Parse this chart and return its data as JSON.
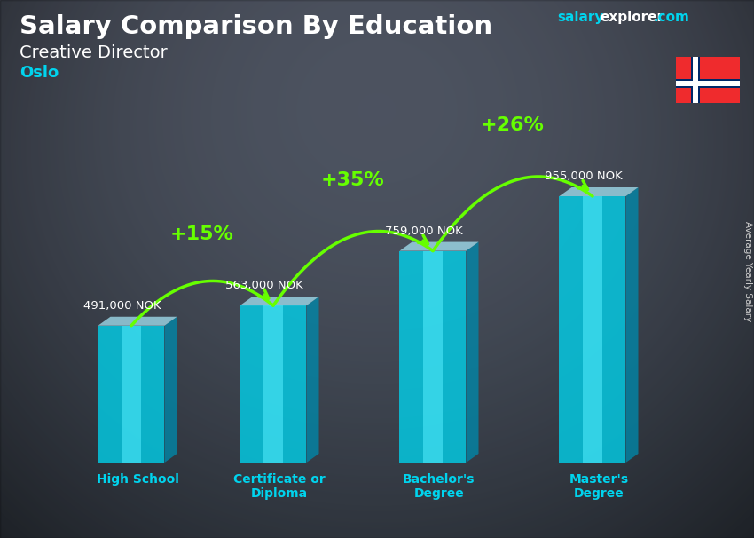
{
  "title": "Salary Comparison By Education",
  "subtitle": "Creative Director",
  "city": "Oslo",
  "ylabel": "Average Yearly Salary",
  "categories": [
    "High School",
    "Certificate or\nDiploma",
    "Bachelor's\nDegree",
    "Master's\nDegree"
  ],
  "values": [
    491000,
    563000,
    759000,
    955000
  ],
  "labels": [
    "491,000 NOK",
    "563,000 NOK",
    "759,000 NOK",
    "955,000 NOK"
  ],
  "pct_changes": [
    "+15%",
    "+35%",
    "+26%"
  ],
  "bar_face_color": "#00d4ee",
  "bar_highlight_color": "#55eeff",
  "bar_side_color": "#0088aa",
  "bar_top_color": "#aaeeff",
  "bar_alpha": 0.75,
  "title_color": "#ffffff",
  "subtitle_color": "#ffffff",
  "city_color": "#00d4ee",
  "label_color": "#ffffff",
  "pct_color": "#66ff00",
  "arrow_color": "#66ff00",
  "xticklabel_color": "#00d4ee",
  "website_salary_color": "#00d4ee",
  "website_explorer_color": "#ffffff",
  "website_com_color": "#00d4ee",
  "ylabel_color": "#cccccc",
  "bg_color": "#4a5568"
}
